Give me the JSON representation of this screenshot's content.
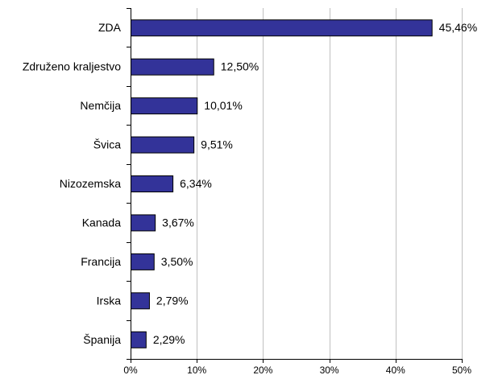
{
  "chart_data": {
    "type": "bar",
    "orientation": "horizontal",
    "categories": [
      "ZDA",
      "Združeno kraljestvo",
      "Nemčija",
      "Švica",
      "Nizozemska",
      "Kanada",
      "Francija",
      "Irska",
      "Španija"
    ],
    "values": [
      45.46,
      12.5,
      10.01,
      9.51,
      6.34,
      3.67,
      3.5,
      2.79,
      2.29
    ],
    "value_labels": [
      "45,46%",
      "12,50%",
      "10,01%",
      "9,51%",
      "6,34%",
      "3,67%",
      "3,50%",
      "2,79%",
      "2,29%"
    ],
    "x_ticks": [
      0,
      10,
      20,
      30,
      40,
      50
    ],
    "x_tick_labels": [
      "0%",
      "10%",
      "20%",
      "30%",
      "40%",
      "50%"
    ],
    "xlim": [
      0,
      50
    ],
    "grid": "vertical",
    "legend": "none",
    "title": "",
    "xlabel": "",
    "ylabel": "",
    "colors": {
      "bar_fill": "#333399",
      "bar_stroke": "#000000",
      "grid": "#c0c0c0",
      "axis": "#000000"
    }
  }
}
